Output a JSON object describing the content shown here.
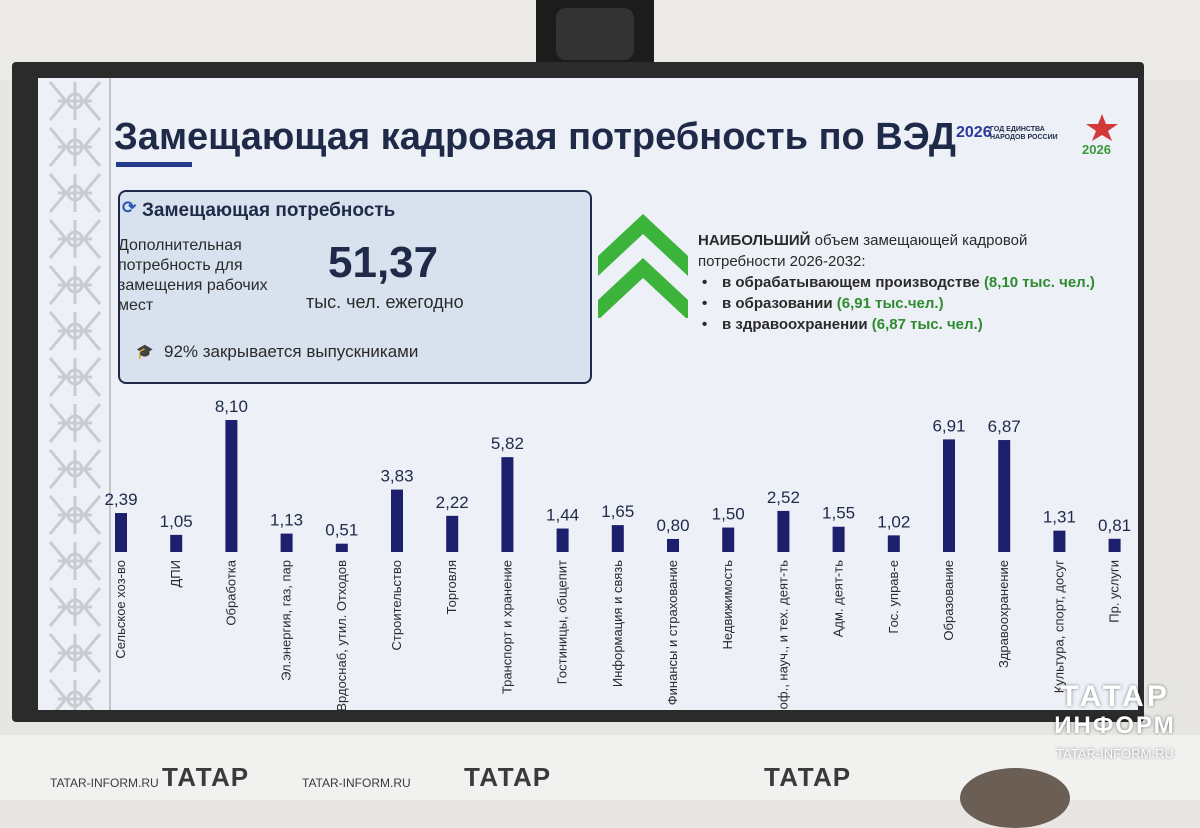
{
  "slide": {
    "title": "Замещающая кадровая потребность по ВЭД"
  },
  "logos": {
    "year_mark": "2026",
    "unity_text": "ГОД ЕДИНСТВА НАРОДОВ РОССИИ",
    "event_year": "2026"
  },
  "infobox": {
    "heading": "Замещающая потребность",
    "description": "Дополнительная потребность для замещения рабочих мест",
    "value": "51,37",
    "unit": "тыс. чел. ежегодно",
    "note": "92% закрывается выпускниками",
    "icons": {
      "heading": "refresh-icon",
      "note": "graduation-cap-icon"
    }
  },
  "highlights": {
    "lead_bold": "НАИБОЛЬШИЙ",
    "lead_rest": "объем замещающей кадровой потребности 2026-2032:",
    "items": [
      {
        "text": "в обрабатывающем производстве",
        "value": "(8,10 тыс. чел.)"
      },
      {
        "text": "в образовании",
        "value": "(6,91 тыс.чел.)"
      },
      {
        "text": "в здравоохранении",
        "value": "(6,87 тыс. чел.)"
      }
    ],
    "icon": "double-chevron-up-icon",
    "accent_color": "#3cb43c"
  },
  "chart_data": {
    "type": "bar",
    "categories": [
      "Сельское хоз-во",
      "ДПИ",
      "Обработка",
      "Эл.энергия, газ, пар",
      "Врдоснаб, утил. Отходов",
      "Строительство",
      "Торговля",
      "Транспорт и хранение",
      "Гостиницы, общепит",
      "Информация и связь",
      "Финансы и страхование",
      "Недвижимость",
      "Проф., науч., и тех. деят-ть",
      "Адм. деят-ть",
      "Гос. управ-е",
      "Образование",
      "Здравоохранение",
      "Культура, спорт, досуг",
      "Пр. услуги"
    ],
    "values": [
      2.39,
      1.05,
      8.1,
      1.13,
      0.51,
      3.83,
      2.22,
      5.82,
      1.44,
      1.65,
      0.8,
      1.5,
      2.52,
      1.55,
      1.02,
      6.91,
      6.87,
      1.31,
      0.81
    ],
    "value_labels": [
      "2,39",
      "1,05",
      "8,10",
      "1,13",
      "0,51",
      "3,83",
      "2,22",
      "5,82",
      "1,44",
      "1,65",
      "0,80",
      "1,50",
      "2,52",
      "1,55",
      "1,02",
      "6,91",
      "6,87",
      "1,31",
      "0,81"
    ],
    "bar_color": "#1c1f6b",
    "grid": false,
    "ylim": [
      0,
      8.1
    ]
  },
  "watermark": {
    "line1": "ТАТАР",
    "line2": "ИНФОРМ",
    "url": "TATAR-INFORM.RU"
  },
  "backdrop": {
    "url_left": "TATAR-INFORM.RU",
    "brand_1": "ТАТАР",
    "url_right": "TATAR-INFORM.RU",
    "brand_2": "ТАТАР",
    "brand_3": "ТАТАР"
  }
}
